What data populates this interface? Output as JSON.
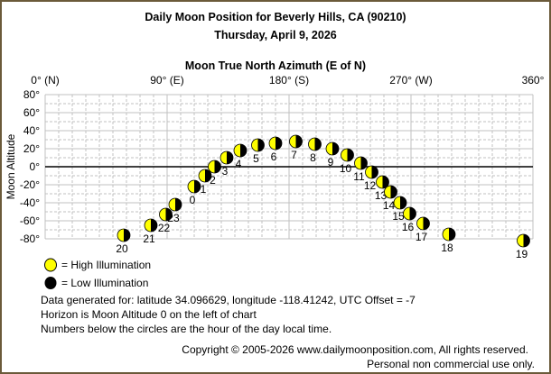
{
  "chart_data": {
    "type": "scatter",
    "title": "Daily Moon Position for Beverly Hills, CA (90210)",
    "subtitle": "Thursday, April 9, 2026",
    "xlabel": "Moon True North Azimuth (E of N)",
    "ylabel": "Moon Altitude",
    "xlim": [
      0,
      360
    ],
    "ylim": [
      -80,
      80
    ],
    "x_ticks": [
      {
        "value": 0,
        "label": "0° (N)"
      },
      {
        "value": 90,
        "label": "90° (E)"
      },
      {
        "value": 180,
        "label": "180° (S)"
      },
      {
        "value": 270,
        "label": "270° (W)"
      },
      {
        "value": 360,
        "label": "360°"
      }
    ],
    "y_ticks": [
      {
        "value": 80,
        "label": "80°"
      },
      {
        "value": 60,
        "label": "60°"
      },
      {
        "value": 40,
        "label": "40°"
      },
      {
        "value": 20,
        "label": "20°"
      },
      {
        "value": 0,
        "label": "0°"
      },
      {
        "value": -20,
        "label": "-20°"
      },
      {
        "value": -40,
        "label": "-40°"
      },
      {
        "value": -60,
        "label": "-60°"
      },
      {
        "value": -80,
        "label": "-80°"
      }
    ],
    "grid": true,
    "horizon_line": 0,
    "points": [
      {
        "hour": "0",
        "azimuth": 110,
        "altitude": -22
      },
      {
        "hour": "1",
        "azimuth": 118,
        "altitude": -10
      },
      {
        "hour": "2",
        "azimuth": 125,
        "altitude": 0
      },
      {
        "hour": "3",
        "azimuth": 134,
        "altitude": 10
      },
      {
        "hour": "4",
        "azimuth": 144,
        "altitude": 18
      },
      {
        "hour": "5",
        "azimuth": 157,
        "altitude": 24
      },
      {
        "hour": "6",
        "azimuth": 170,
        "altitude": 26
      },
      {
        "hour": "7",
        "azimuth": 185,
        "altitude": 28
      },
      {
        "hour": "8",
        "azimuth": 199,
        "altitude": 25
      },
      {
        "hour": "9",
        "azimuth": 212,
        "altitude": 20
      },
      {
        "hour": "10",
        "azimuth": 223,
        "altitude": 13
      },
      {
        "hour": "11",
        "azimuth": 233,
        "altitude": 4
      },
      {
        "hour": "12",
        "azimuth": 241,
        "altitude": -6
      },
      {
        "hour": "13",
        "azimuth": 249,
        "altitude": -17
      },
      {
        "hour": "14",
        "azimuth": 255,
        "altitude": -28
      },
      {
        "hour": "15",
        "azimuth": 262,
        "altitude": -40
      },
      {
        "hour": "16",
        "azimuth": 269,
        "altitude": -52
      },
      {
        "hour": "17",
        "azimuth": 279,
        "altitude": -63
      },
      {
        "hour": "18",
        "azimuth": 298,
        "altitude": -75
      },
      {
        "hour": "19",
        "azimuth": 353,
        "altitude": -82
      },
      {
        "hour": "20",
        "azimuth": 58,
        "altitude": -76
      },
      {
        "hour": "21",
        "azimuth": 78,
        "altitude": -65
      },
      {
        "hour": "22",
        "azimuth": 89,
        "altitude": -53
      },
      {
        "hour": "23",
        "azimuth": 96,
        "altitude": -42
      }
    ],
    "colors": {
      "high_illumination": "#ffff00",
      "low_illumination": "#000000",
      "grid": "#c0c0c0",
      "border": "#6b5a3a"
    }
  },
  "legend": {
    "high": "= High Illumination",
    "low": "= Low Illumination"
  },
  "notes": [
    "Data generated for: latitude 34.096629, longitude -118.41242, UTC Offset = -7",
    "Horizon is Moon Altitude 0 on the left of chart",
    "Numbers below the circles are the hour of the day local time."
  ],
  "footer": {
    "copyright": "Copyright © 2005-2026 www.dailymoonposition.com, All rights reserved.",
    "usage": "Personal non commercial use only."
  }
}
